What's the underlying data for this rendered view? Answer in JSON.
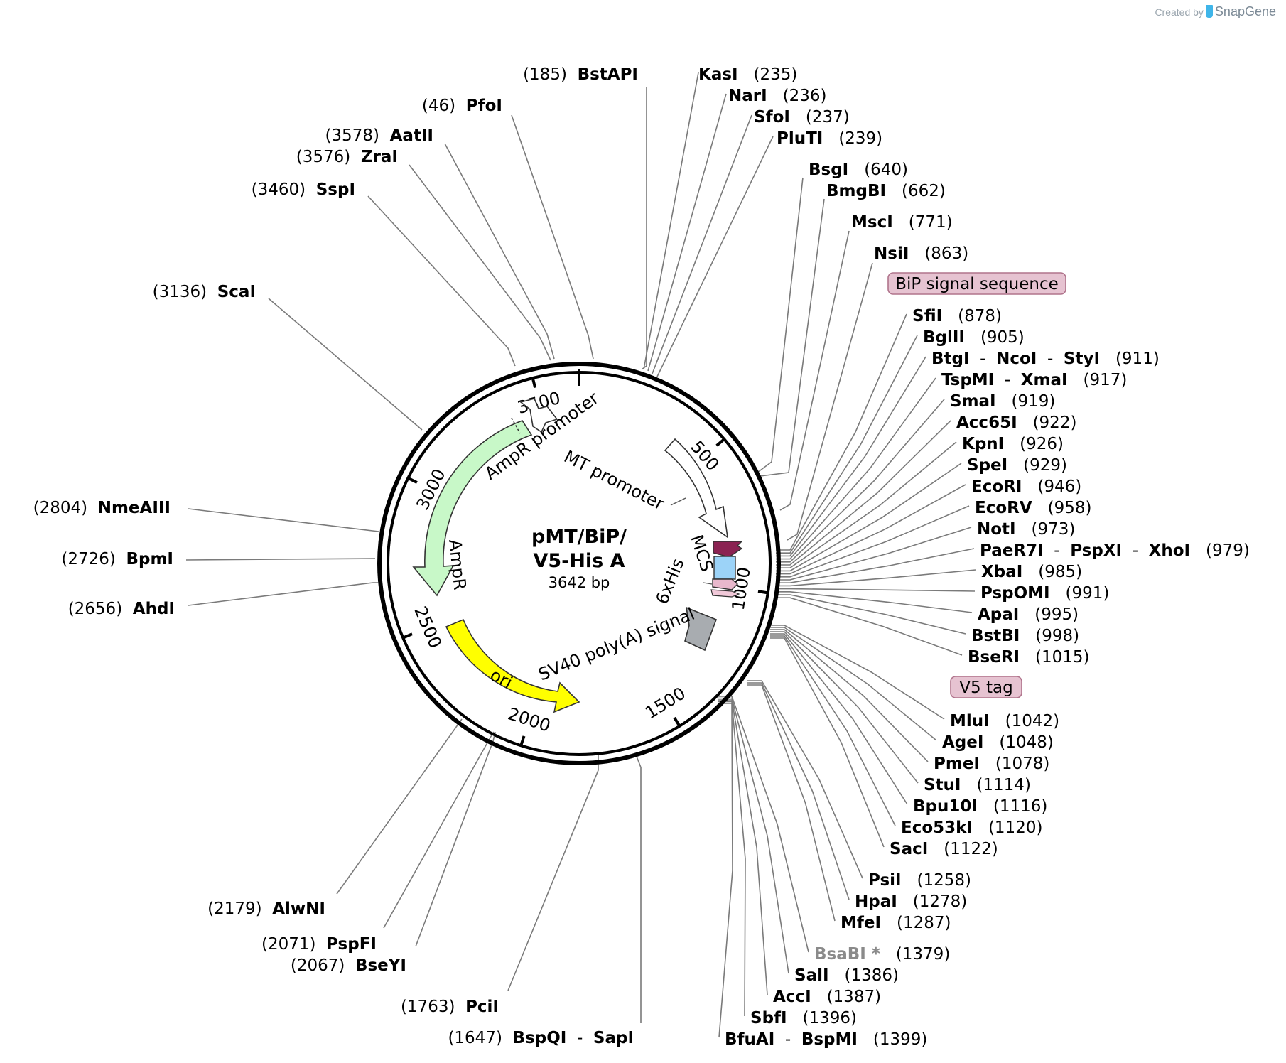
{
  "brand": {
    "created_by": "Created by",
    "name": "SnapGene"
  },
  "plasmid": {
    "name_line1": "pMT/BiP/",
    "name_line2": "V5-His A",
    "size": "3642 bp",
    "length": 3642
  },
  "ticks": [
    {
      "bp": 500,
      "label": "500"
    },
    {
      "bp": 1000,
      "label": "1000"
    },
    {
      "bp": 1500,
      "label": "1500"
    },
    {
      "bp": 2000,
      "label": "2000"
    },
    {
      "bp": 2500,
      "label": "2500"
    },
    {
      "bp": 3000,
      "label": "3000"
    },
    {
      "bp": 3500,
      "label": "3500"
    }
  ],
  "features": [
    {
      "name": "AmpR promoter",
      "color": "#ffffff"
    },
    {
      "name": "AmpR",
      "color": "#c8f8c8"
    },
    {
      "name": "MT promoter",
      "color": "#ffffff"
    },
    {
      "name": "MCS",
      "color": "#ffffff"
    },
    {
      "name": "6xHis",
      "color": "#ffffff"
    },
    {
      "name": "SV40 poly(A) signal",
      "color": "#a8acb0"
    },
    {
      "name": "ori",
      "color": "#ffff00"
    },
    {
      "name": "BiP signal sequence",
      "color": "#8b2252"
    },
    {
      "name": "V5 tag",
      "color": "#f0c8d8"
    }
  ],
  "feature_boxes": {
    "bip": "BiP signal sequence",
    "v5": "V5 tag",
    "box_color": "#e6c3d1",
    "box_border": "#b0748c"
  },
  "sites_top": [
    {
      "names": [
        "BstAPI"
      ],
      "pos": "(185)"
    },
    {
      "names": [
        "PfoI"
      ],
      "pos": "(46)"
    },
    {
      "names": [
        "AatII"
      ],
      "pos": "(3578)"
    },
    {
      "names": [
        "ZraI"
      ],
      "pos": "(3576)"
    },
    {
      "names": [
        "SspI"
      ],
      "pos": "(3460)"
    },
    {
      "names": [
        "ScaI"
      ],
      "pos": "(3136)"
    }
  ],
  "sites_left": [
    {
      "names": [
        "NmeAIII"
      ],
      "pos": "(2804)"
    },
    {
      "names": [
        "BpmI"
      ],
      "pos": "(2726)"
    },
    {
      "names": [
        "AhdI"
      ],
      "pos": "(2656)"
    },
    {
      "names": [
        "AlwNI"
      ],
      "pos": "(2179)"
    },
    {
      "names": [
        "PspFI"
      ],
      "pos": "(2071)"
    },
    {
      "names": [
        "BseYI"
      ],
      "pos": "(2067)"
    },
    {
      "names": [
        "PciI"
      ],
      "pos": "(1763)"
    },
    {
      "names": [
        "BspQI",
        "SapI"
      ],
      "pos": "(1647)"
    }
  ],
  "sites_right": [
    {
      "names": [
        "KasI"
      ],
      "pos": "(235)"
    },
    {
      "names": [
        "NarI"
      ],
      "pos": "(236)"
    },
    {
      "names": [
        "SfoI"
      ],
      "pos": "(237)"
    },
    {
      "names": [
        "PluTI"
      ],
      "pos": "(239)"
    },
    {
      "names": [
        "BsgI"
      ],
      "pos": "(640)"
    },
    {
      "names": [
        "BmgBI"
      ],
      "pos": "(662)"
    },
    {
      "names": [
        "MscI"
      ],
      "pos": "(771)"
    },
    {
      "names": [
        "NsiI"
      ],
      "pos": "(863)"
    },
    {
      "names": [
        "SfiI"
      ],
      "pos": "(878)"
    },
    {
      "names": [
        "BglII"
      ],
      "pos": "(905)"
    },
    {
      "names": [
        "BtgI",
        "NcoI",
        "StyI"
      ],
      "pos": "(911)"
    },
    {
      "names": [
        "TspMI",
        "XmaI"
      ],
      "pos": "(917)"
    },
    {
      "names": [
        "SmaI"
      ],
      "pos": "(919)"
    },
    {
      "names": [
        "Acc65I"
      ],
      "pos": "(922)"
    },
    {
      "names": [
        "KpnI"
      ],
      "pos": "(926)"
    },
    {
      "names": [
        "SpeI"
      ],
      "pos": "(929)"
    },
    {
      "names": [
        "EcoRI"
      ],
      "pos": "(946)"
    },
    {
      "names": [
        "EcoRV"
      ],
      "pos": "(958)"
    },
    {
      "names": [
        "NotI"
      ],
      "pos": "(973)"
    },
    {
      "names": [
        "PaeR7I",
        "PspXI",
        "XhoI"
      ],
      "pos": "(979)"
    },
    {
      "names": [
        "XbaI"
      ],
      "pos": "(985)"
    },
    {
      "names": [
        "PspOMI"
      ],
      "pos": "(991)"
    },
    {
      "names": [
        "ApaI"
      ],
      "pos": "(995)"
    },
    {
      "names": [
        "BstBI"
      ],
      "pos": "(998)"
    },
    {
      "names": [
        "BseRI"
      ],
      "pos": "(1015)"
    },
    {
      "names": [
        "MluI"
      ],
      "pos": "(1042)"
    },
    {
      "names": [
        "AgeI"
      ],
      "pos": "(1048)"
    },
    {
      "names": [
        "PmeI"
      ],
      "pos": "(1078)"
    },
    {
      "names": [
        "StuI"
      ],
      "pos": "(1114)"
    },
    {
      "names": [
        "Bpu10I"
      ],
      "pos": "(1116)"
    },
    {
      "names": [
        "Eco53kI"
      ],
      "pos": "(1120)"
    },
    {
      "names": [
        "SacI"
      ],
      "pos": "(1122)"
    },
    {
      "names": [
        "PsiI"
      ],
      "pos": "(1258)"
    },
    {
      "names": [
        "HpaI"
      ],
      "pos": "(1278)"
    },
    {
      "names": [
        "MfeI"
      ],
      "pos": "(1287)"
    },
    {
      "names": [
        "BsaBI *"
      ],
      "pos": "(1379)",
      "gray": true
    },
    {
      "names": [
        "SalI"
      ],
      "pos": "(1386)"
    },
    {
      "names": [
        "AccI"
      ],
      "pos": "(1387)"
    },
    {
      "names": [
        "SbfI"
      ],
      "pos": "(1396)"
    },
    {
      "names": [
        "BfuAI",
        "BspMI"
      ],
      "pos": "(1399)"
    }
  ]
}
